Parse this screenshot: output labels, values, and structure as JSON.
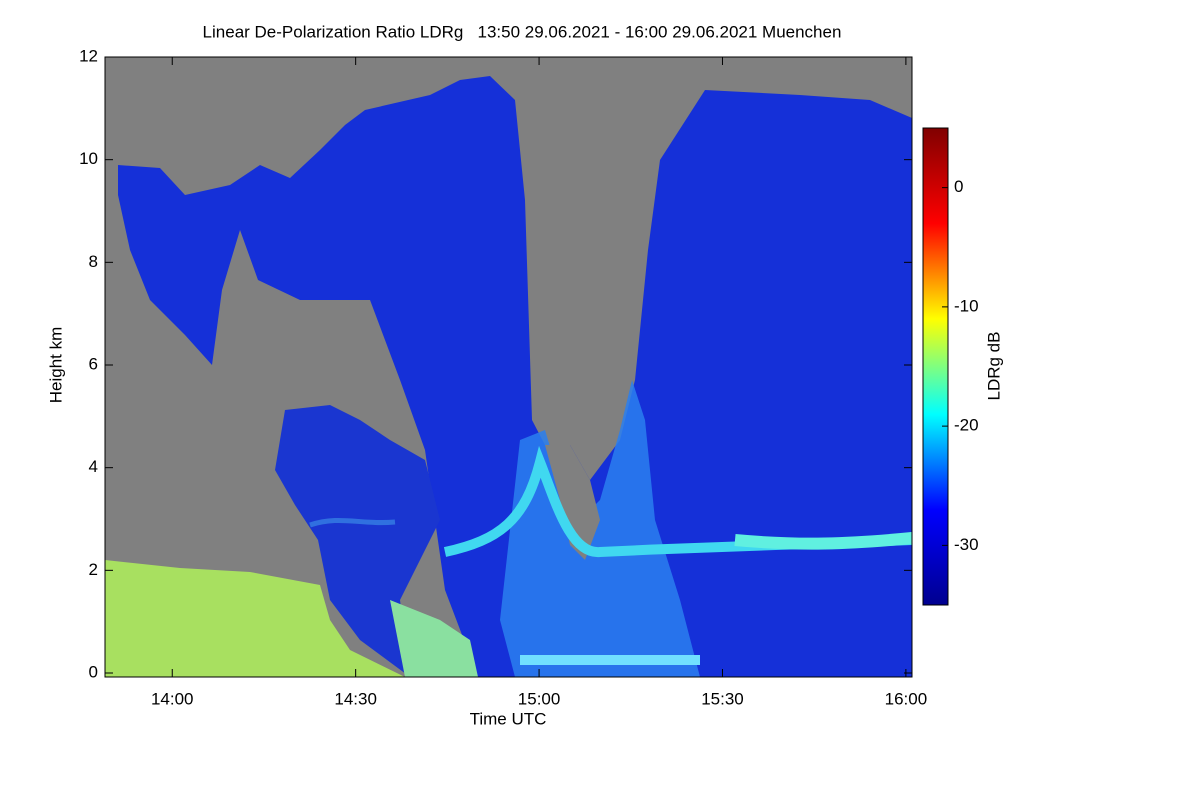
{
  "chart_data": {
    "type": "heatmap",
    "title": "Linear De-Polarization Ratio LDRg   13:50 29.06.2021 - 16:00 29.06.2021 Muenchen",
    "xlabel": "Time UTC",
    "ylabel": "Height km",
    "xlim": [
      829,
      961
    ],
    "xticks": [
      {
        "value": 840,
        "label": "14:00"
      },
      {
        "value": 870,
        "label": "14:30"
      },
      {
        "value": 900,
        "label": "15:00"
      },
      {
        "value": 930,
        "label": "15:30"
      },
      {
        "value": 960,
        "label": "16:00"
      }
    ],
    "ylim": [
      0,
      12
    ],
    "yticks": [
      0,
      2,
      4,
      6,
      8,
      10,
      12
    ],
    "missing_color": "#808080",
    "colorbar": {
      "label": "LDRg dB",
      "lim": [
        -35,
        5
      ],
      "ticks": [
        -30,
        -20,
        -10,
        0
      ],
      "colors": [
        "#00008f",
        "#0000ff",
        "#00ffff",
        "#ffff00",
        "#ff0000",
        "#800000"
      ]
    }
  }
}
